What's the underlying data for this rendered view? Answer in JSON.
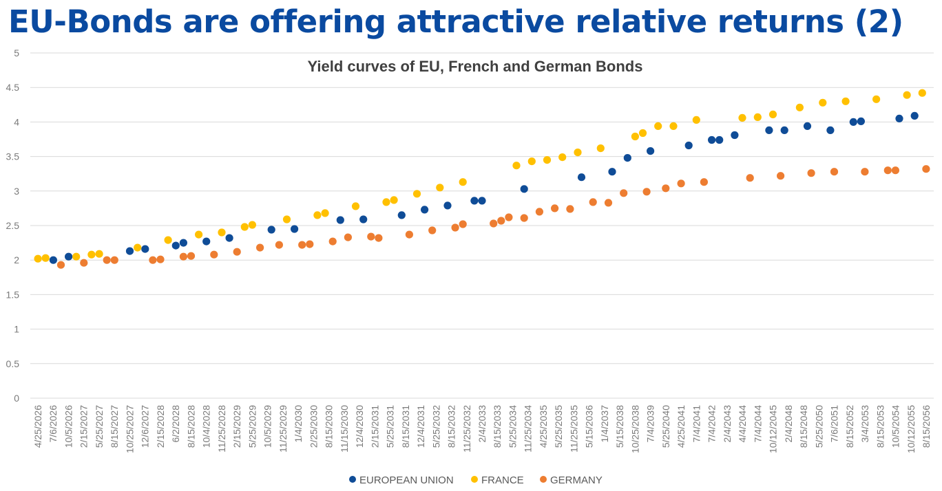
{
  "page": {
    "title": "EU-Bonds are offering attractive relative returns (2)"
  },
  "colors": {
    "eu": "#0f4c97",
    "france": "#ffc000",
    "germany": "#ed7d31",
    "grid": "#d9d9d9",
    "title": "#0a4aa0"
  },
  "chart_data": {
    "type": "scatter",
    "title": "Yield curves of EU, French and German Bonds",
    "xlabel": "",
    "ylabel": "",
    "ylim": [
      0,
      5
    ],
    "yticks": [
      "0",
      "0.5",
      "1",
      "1.5",
      "2",
      "2.5",
      "3",
      "3.5",
      "4",
      "4.5",
      "5"
    ],
    "grid": true,
    "legend_position": "bottom",
    "categories": [
      "4/25/2026",
      "7/6/2026",
      "10/5/2026",
      "2/15/2027",
      "5/25/2027",
      "8/15/2027",
      "10/25/2027",
      "12/6/2027",
      "2/15/2028",
      "6/2/2028",
      "8/15/2028",
      "10/4/2028",
      "11/25/2028",
      "2/15/2029",
      "5/25/2029",
      "10/5/2029",
      "11/25/2029",
      "1/4/2030",
      "2/25/2030",
      "8/15/2030",
      "11/15/2030",
      "12/4/2030",
      "2/15/2031",
      "5/25/2031",
      "8/15/2031",
      "12/4/2031",
      "5/25/2032",
      "8/15/2032",
      "11/25/2032",
      "2/4/2033",
      "8/15/2033",
      "5/25/2034",
      "11/25/2034",
      "4/25/2035",
      "5/25/2035",
      "11/25/2035",
      "5/15/2036",
      "1/4/2037",
      "5/15/2038",
      "10/25/2038",
      "7/4/2039",
      "5/25/2040",
      "4/25/2041",
      "7/4/2041",
      "7/4/2042",
      "2/4/2043",
      "4/4/2044",
      "7/4/2044",
      "10/12/2045",
      "2/4/2048",
      "8/15/2048",
      "5/25/2050",
      "7/6/2051",
      "8/15/2052",
      "3/4/2053",
      "8/15/2053",
      "10/5/2054",
      "10/12/2055",
      "8/15/2056"
    ],
    "series": [
      {
        "name": "EUROPEAN UNION",
        "color": "#0f4c97",
        "points": [
          {
            "x": 2.0,
            "y": 2.0
          },
          {
            "x": 4.0,
            "y": 2.05
          },
          {
            "x": 12.0,
            "y": 2.13
          },
          {
            "x": 14.0,
            "y": 2.16
          },
          {
            "x": 18.0,
            "y": 2.21
          },
          {
            "x": 19.0,
            "y": 2.25
          },
          {
            "x": 22.0,
            "y": 2.27
          },
          {
            "x": 25.0,
            "y": 2.32
          },
          {
            "x": 30.5,
            "y": 2.44
          },
          {
            "x": 33.5,
            "y": 2.45
          },
          {
            "x": 39.5,
            "y": 2.58
          },
          {
            "x": 42.5,
            "y": 2.59
          },
          {
            "x": 47.5,
            "y": 2.65
          },
          {
            "x": 50.5,
            "y": 2.73
          },
          {
            "x": 53.5,
            "y": 2.79
          },
          {
            "x": 57.0,
            "y": 2.86
          },
          {
            "x": 58.0,
            "y": 2.86
          },
          {
            "x": 63.5,
            "y": 3.03
          },
          {
            "x": 71.0,
            "y": 3.2
          },
          {
            "x": 75.0,
            "y": 3.28
          },
          {
            "x": 77.0,
            "y": 3.48
          },
          {
            "x": 80.0,
            "y": 3.58
          },
          {
            "x": 85.0,
            "y": 3.66
          },
          {
            "x": 88.0,
            "y": 3.74
          },
          {
            "x": 89.0,
            "y": 3.74
          },
          {
            "x": 91.0,
            "y": 3.81
          },
          {
            "x": 95.5,
            "y": 3.88
          },
          {
            "x": 97.5,
            "y": 3.88
          },
          {
            "x": 100.5,
            "y": 3.94
          },
          {
            "x": 103.5,
            "y": 3.88
          },
          {
            "x": 106.5,
            "y": 4.0
          },
          {
            "x": 107.5,
            "y": 4.01
          },
          {
            "x": 112.5,
            "y": 4.05
          },
          {
            "x": 114.5,
            "y": 4.09
          }
        ]
      },
      {
        "name": "FRANCE",
        "color": "#ffc000",
        "points": [
          {
            "x": 0.0,
            "y": 2.02
          },
          {
            "x": 1.0,
            "y": 2.03
          },
          {
            "x": 5.0,
            "y": 2.05
          },
          {
            "x": 7.0,
            "y": 2.08
          },
          {
            "x": 8.0,
            "y": 2.09
          },
          {
            "x": 13.0,
            "y": 2.18
          },
          {
            "x": 17.0,
            "y": 2.29
          },
          {
            "x": 21.0,
            "y": 2.37
          },
          {
            "x": 24.0,
            "y": 2.4
          },
          {
            "x": 27.0,
            "y": 2.48
          },
          {
            "x": 28.0,
            "y": 2.51
          },
          {
            "x": 32.5,
            "y": 2.59
          },
          {
            "x": 36.5,
            "y": 2.65
          },
          {
            "x": 37.5,
            "y": 2.68
          },
          {
            "x": 41.5,
            "y": 2.78
          },
          {
            "x": 45.5,
            "y": 2.84
          },
          {
            "x": 46.5,
            "y": 2.87
          },
          {
            "x": 49.5,
            "y": 2.96
          },
          {
            "x": 52.5,
            "y": 3.05
          },
          {
            "x": 55.5,
            "y": 3.13
          },
          {
            "x": 62.5,
            "y": 3.37
          },
          {
            "x": 64.5,
            "y": 3.43
          },
          {
            "x": 66.5,
            "y": 3.45
          },
          {
            "x": 68.5,
            "y": 3.49
          },
          {
            "x": 70.5,
            "y": 3.56
          },
          {
            "x": 73.5,
            "y": 3.62
          },
          {
            "x": 78.0,
            "y": 3.79
          },
          {
            "x": 79.0,
            "y": 3.84
          },
          {
            "x": 81.0,
            "y": 3.94
          },
          {
            "x": 83.0,
            "y": 3.94
          },
          {
            "x": 86.0,
            "y": 4.03
          },
          {
            "x": 92.0,
            "y": 4.06
          },
          {
            "x": 94.0,
            "y": 4.07
          },
          {
            "x": 96.0,
            "y": 4.11
          },
          {
            "x": 99.5,
            "y": 4.21
          },
          {
            "x": 102.5,
            "y": 4.28
          },
          {
            "x": 105.5,
            "y": 4.3
          },
          {
            "x": 109.5,
            "y": 4.33
          },
          {
            "x": 113.5,
            "y": 4.39
          },
          {
            "x": 115.5,
            "y": 4.42
          }
        ]
      },
      {
        "name": "GERMANY",
        "color": "#ed7d31",
        "points": [
          {
            "x": 3.0,
            "y": 1.93
          },
          {
            "x": 6.0,
            "y": 1.96
          },
          {
            "x": 9.0,
            "y": 2.0
          },
          {
            "x": 10.0,
            "y": 2.0
          },
          {
            "x": 15.0,
            "y": 2.0
          },
          {
            "x": 16.0,
            "y": 2.01
          },
          {
            "x": 19.0,
            "y": 2.05
          },
          {
            "x": 20.0,
            "y": 2.06
          },
          {
            "x": 23.0,
            "y": 2.08
          },
          {
            "x": 26.0,
            "y": 2.12
          },
          {
            "x": 29.0,
            "y": 2.18
          },
          {
            "x": 31.5,
            "y": 2.22
          },
          {
            "x": 34.5,
            "y": 2.22
          },
          {
            "x": 35.5,
            "y": 2.23
          },
          {
            "x": 38.5,
            "y": 2.27
          },
          {
            "x": 40.5,
            "y": 2.33
          },
          {
            "x": 43.5,
            "y": 2.34
          },
          {
            "x": 44.5,
            "y": 2.32
          },
          {
            "x": 48.5,
            "y": 2.37
          },
          {
            "x": 51.5,
            "y": 2.43
          },
          {
            "x": 54.5,
            "y": 2.47
          },
          {
            "x": 55.5,
            "y": 2.52
          },
          {
            "x": 59.5,
            "y": 2.53
          },
          {
            "x": 60.5,
            "y": 2.57
          },
          {
            "x": 61.5,
            "y": 2.62
          },
          {
            "x": 63.5,
            "y": 2.61
          },
          {
            "x": 65.5,
            "y": 2.7
          },
          {
            "x": 67.5,
            "y": 2.75
          },
          {
            "x": 69.5,
            "y": 2.74
          },
          {
            "x": 72.5,
            "y": 2.84
          },
          {
            "x": 74.5,
            "y": 2.83
          },
          {
            "x": 76.5,
            "y": 2.97
          },
          {
            "x": 79.5,
            "y": 2.99
          },
          {
            "x": 82.0,
            "y": 3.04
          },
          {
            "x": 84.0,
            "y": 3.11
          },
          {
            "x": 87.0,
            "y": 3.13
          },
          {
            "x": 93.0,
            "y": 3.19
          },
          {
            "x": 97.0,
            "y": 3.22
          },
          {
            "x": 101.0,
            "y": 3.26
          },
          {
            "x": 104.0,
            "y": 3.28
          },
          {
            "x": 108.0,
            "y": 3.28
          },
          {
            "x": 111.0,
            "y": 3.3
          },
          {
            "x": 112.0,
            "y": 3.3
          },
          {
            "x": 116.0,
            "y": 3.32
          }
        ]
      }
    ]
  }
}
